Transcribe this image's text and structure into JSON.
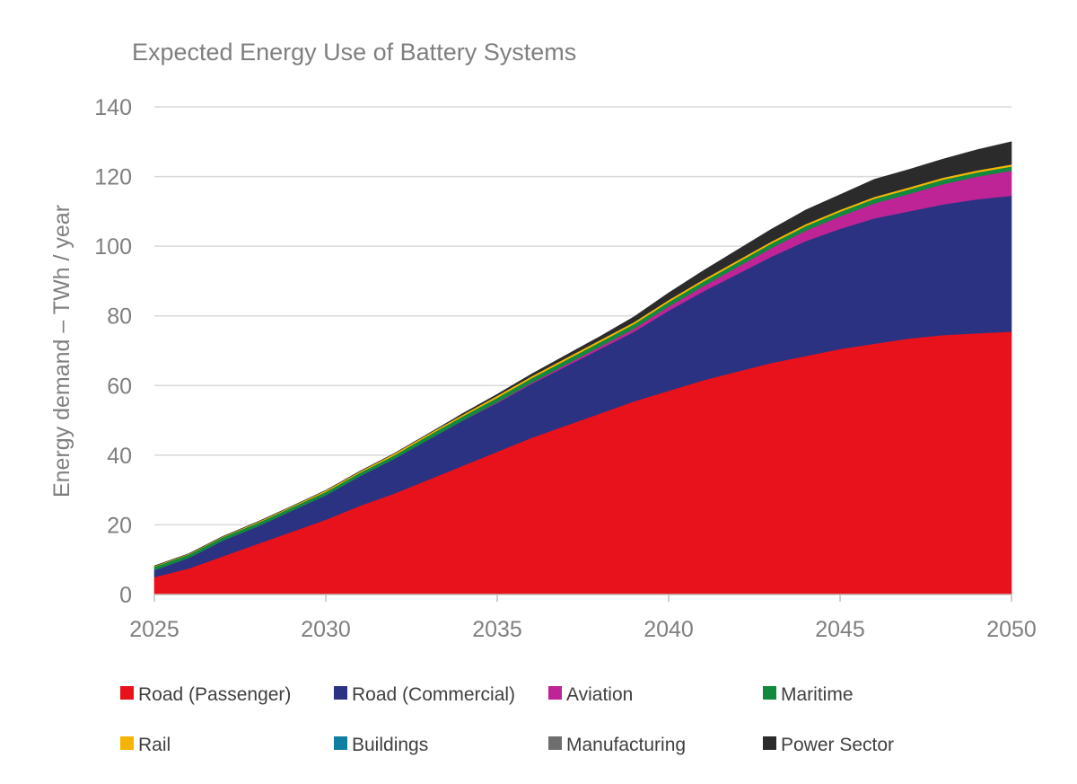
{
  "chart_data": {
    "type": "area",
    "stacked": true,
    "title": "Expected Energy Use of Battery Systems",
    "xlabel": "",
    "ylabel": "Energy demand – TWh / year",
    "x": [
      2025,
      2026,
      2027,
      2028,
      2029,
      2030,
      2031,
      2032,
      2033,
      2034,
      2035,
      2036,
      2037,
      2038,
      2039,
      2040,
      2041,
      2042,
      2043,
      2044,
      2045,
      2046,
      2047,
      2048,
      2049,
      2050
    ],
    "xticks": [
      2025,
      2030,
      2035,
      2040,
      2045,
      2050
    ],
    "xlim": [
      2025,
      2050
    ],
    "ylim": [
      0,
      140
    ],
    "yticks": [
      0,
      20,
      40,
      60,
      80,
      100,
      120,
      140
    ],
    "grid": "horizontal",
    "legend_position": "bottom",
    "series": [
      {
        "name": "Road (Passenger)",
        "color": "#e8121c",
        "values": [
          5,
          7.5,
          11,
          14.5,
          18,
          21.5,
          25.5,
          29,
          33,
          37,
          41,
          45,
          48.5,
          52,
          55.5,
          58.5,
          61.5,
          64,
          66.5,
          68.5,
          70.5,
          72,
          73.5,
          74.5,
          75,
          75.5
        ]
      },
      {
        "name": "Road (Commercial)",
        "color": "#2b3282",
        "values": [
          2,
          3,
          4.5,
          5,
          6,
          7,
          8.5,
          10,
          11.5,
          13,
          14,
          15.5,
          17,
          18.5,
          20,
          23,
          25.5,
          28,
          30.5,
          33,
          34.5,
          36,
          36.5,
          37.5,
          38.5,
          39
        ]
      },
      {
        "name": "Aviation",
        "color": "#bf2496",
        "values": [
          0,
          0,
          0,
          0,
          0,
          0,
          0,
          0,
          0,
          0,
          0.2,
          0.3,
          0.5,
          0.7,
          0.9,
          1.2,
          1.5,
          2,
          2.5,
          3,
          3.6,
          4.3,
          5,
          5.8,
          6.5,
          7.2
        ]
      },
      {
        "name": "Maritime",
        "color": "#12893e",
        "values": [
          1,
          1,
          1,
          1,
          1,
          1,
          1,
          1,
          1.2,
          1.2,
          1.3,
          1.3,
          1.3,
          1.3,
          1.3,
          1.3,
          1.3,
          1.3,
          1.3,
          1.3,
          1.3,
          1.3,
          1.3,
          1.3,
          1.2,
          1.2
        ]
      },
      {
        "name": "Rail",
        "color": "#f5b400",
        "values": [
          0.2,
          0.2,
          0.2,
          0.3,
          0.3,
          0.4,
          0.4,
          0.5,
          0.5,
          0.5,
          0.6,
          0.6,
          0.6,
          0.6,
          0.6,
          0.6,
          0.6,
          0.6,
          0.6,
          0.6,
          0.6,
          0.6,
          0.6,
          0.6,
          0.6,
          0.6
        ]
      },
      {
        "name": "Buildings",
        "color": "#107ea0",
        "values": [
          0,
          0,
          0,
          0,
          0,
          0,
          0,
          0,
          0,
          0,
          0,
          0,
          0,
          0,
          0,
          0,
          0,
          0,
          0,
          0,
          0,
          0,
          0,
          0,
          0,
          0
        ]
      },
      {
        "name": "Manufacturing",
        "color": "#6e6e6e",
        "values": [
          0,
          0,
          0,
          0,
          0,
          0,
          0,
          0,
          0,
          0,
          0,
          0,
          0,
          0,
          0,
          0,
          0,
          0,
          0,
          0,
          0,
          0,
          0,
          0,
          0,
          0
        ]
      },
      {
        "name": "Power Sector",
        "color": "#2b2b2b",
        "values": [
          0,
          0,
          0,
          0,
          0,
          0,
          0,
          0,
          0,
          0.3,
          0.4,
          0.6,
          0.8,
          1,
          1.5,
          2,
          2.5,
          3,
          3.5,
          4,
          4.3,
          5,
          5.1,
          5.3,
          5.9,
          6.5
        ]
      }
    ]
  }
}
